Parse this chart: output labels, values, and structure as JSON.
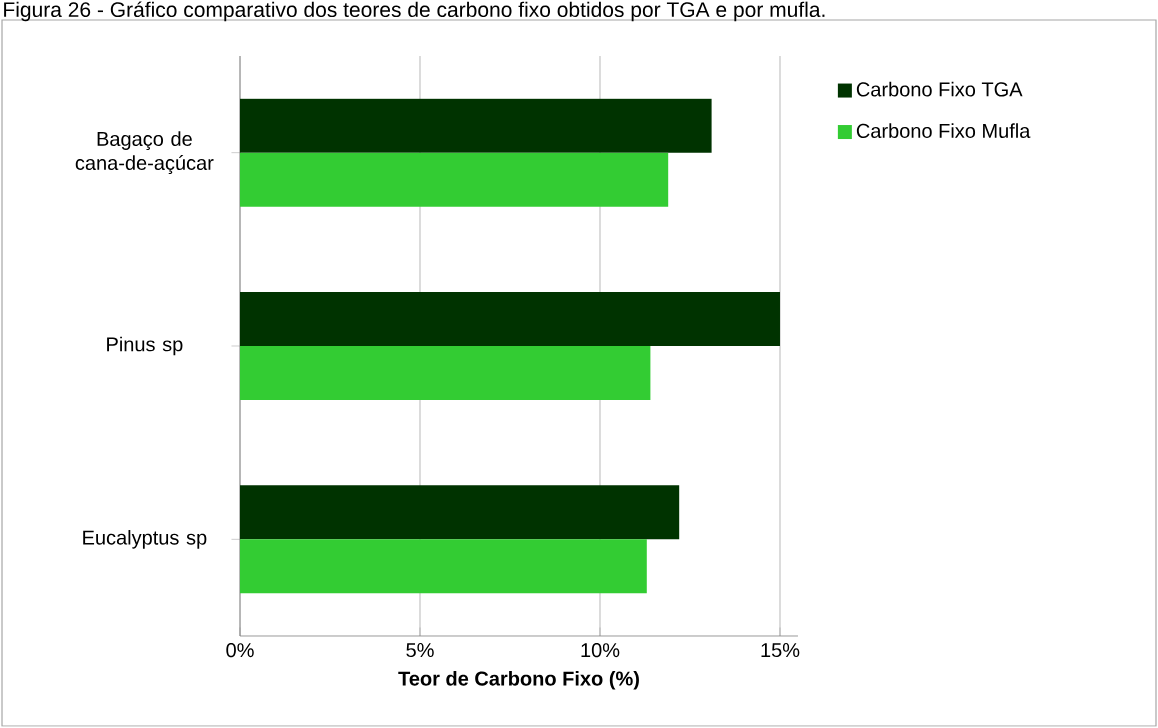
{
  "chart_data": {
    "type": "bar",
    "orientation": "horizontal",
    "title": "Figura 26 - Gráfico comparativo dos teores de carbono fixo obtidos por TGA e por mufla.",
    "xlabel": "Teor de Carbono  Fixo (%)",
    "categories": [
      "Bagaço de cana-de-açúcar",
      "Pinus sp",
      "Eucalyptus sp"
    ],
    "series": [
      {
        "name": "Carbono Fixo TGA",
        "color": "#003300",
        "values": [
          13.1,
          15.0,
          12.2
        ]
      },
      {
        "name": "Carbono Fixo Mufla",
        "color": "#33cc33",
        "values": [
          11.9,
          11.4,
          11.3
        ]
      }
    ],
    "xlim": [
      0,
      15.5
    ],
    "xticks": [
      {
        "value": 0,
        "label": "0%"
      },
      {
        "value": 5,
        "label": "5%"
      },
      {
        "value": 10,
        "label": "10%"
      },
      {
        "value": 15,
        "label": "15%"
      }
    ],
    "grid": "x",
    "legend": "right"
  }
}
